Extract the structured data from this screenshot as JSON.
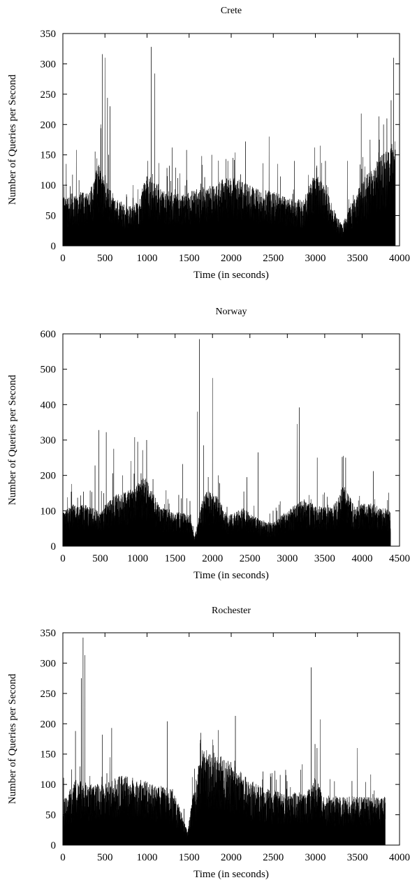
{
  "chart_data": [
    {
      "type": "bar",
      "title": "Crete",
      "xlabel": "Time (in seconds)",
      "ylabel": "Number of Queries per Second",
      "xlim": [
        0,
        4000
      ],
      "ylim": [
        0,
        350
      ],
      "xticks": [
        0,
        500,
        1000,
        1500,
        2000,
        2500,
        3000,
        3500,
        4000
      ],
      "yticks": [
        0,
        50,
        100,
        150,
        200,
        250,
        300,
        350
      ],
      "grid": false,
      "bar_color": "#000000",
      "duration": 3950,
      "baseline": [
        [
          0,
          55
        ],
        [
          150,
          62
        ],
        [
          300,
          60
        ],
        [
          430,
          95
        ],
        [
          520,
          75
        ],
        [
          600,
          58
        ],
        [
          700,
          48
        ],
        [
          800,
          45
        ],
        [
          900,
          50
        ],
        [
          980,
          80
        ],
        [
          1080,
          75
        ],
        [
          1200,
          62
        ],
        [
          1400,
          60
        ],
        [
          1600,
          65
        ],
        [
          1800,
          70
        ],
        [
          1950,
          80
        ],
        [
          2100,
          75
        ],
        [
          2300,
          65
        ],
        [
          2500,
          62
        ],
        [
          2700,
          55
        ],
        [
          2850,
          52
        ],
        [
          3000,
          85
        ],
        [
          3150,
          60
        ],
        [
          3250,
          35
        ],
        [
          3320,
          25
        ],
        [
          3450,
          55
        ],
        [
          3600,
          80
        ],
        [
          3750,
          100
        ],
        [
          3950,
          120
        ]
      ],
      "peaks": [
        [
          450,
          200
        ],
        [
          470,
          316
        ],
        [
          500,
          310
        ],
        [
          530,
          244
        ],
        [
          560,
          230
        ],
        [
          1050,
          328
        ],
        [
          1090,
          284
        ],
        [
          1010,
          140
        ],
        [
          40,
          135
        ],
        [
          160,
          158
        ],
        [
          1300,
          162
        ],
        [
          1470,
          158
        ],
        [
          1650,
          148
        ],
        [
          1960,
          140
        ],
        [
          2020,
          145
        ],
        [
          2170,
          172
        ],
        [
          2450,
          180
        ],
        [
          2550,
          135
        ],
        [
          2750,
          140
        ],
        [
          2990,
          162
        ],
        [
          3060,
          165
        ],
        [
          3120,
          140
        ],
        [
          3380,
          140
        ],
        [
          3545,
          218
        ],
        [
          3650,
          175
        ],
        [
          3760,
          175
        ],
        [
          3810,
          200
        ],
        [
          3850,
          210
        ],
        [
          3900,
          240
        ],
        [
          3930,
          310
        ]
      ]
    },
    {
      "type": "bar",
      "title": "Norway",
      "xlabel": "Time (in seconds)",
      "ylabel": "Number of Queries per Second",
      "xlim": [
        0,
        4500
      ],
      "ylim": [
        0,
        600
      ],
      "xticks": [
        0,
        500,
        1000,
        1500,
        2000,
        2500,
        3000,
        3500,
        4000,
        4500
      ],
      "yticks": [
        0,
        100,
        200,
        300,
        400,
        500,
        600
      ],
      "grid": false,
      "bar_color": "#000000",
      "duration": 4380,
      "baseline": [
        [
          0,
          65
        ],
        [
          150,
          85
        ],
        [
          300,
          80
        ],
        [
          500,
          70
        ],
        [
          700,
          100
        ],
        [
          900,
          110
        ],
        [
          1100,
          135
        ],
        [
          1300,
          75
        ],
        [
          1500,
          70
        ],
        [
          1700,
          60
        ],
        [
          1760,
          18
        ],
        [
          1820,
          60
        ],
        [
          1900,
          110
        ],
        [
          2050,
          100
        ],
        [
          2200,
          60
        ],
        [
          2400,
          75
        ],
        [
          2600,
          55
        ],
        [
          2800,
          45
        ],
        [
          3000,
          70
        ],
        [
          3200,
          90
        ],
        [
          3400,
          80
        ],
        [
          3600,
          75
        ],
        [
          3750,
          120
        ],
        [
          3900,
          80
        ],
        [
          4100,
          85
        ],
        [
          4380,
          70
        ]
      ],
      "peaks": [
        [
          430,
          228
        ],
        [
          480,
          328
        ],
        [
          580,
          322
        ],
        [
          680,
          275
        ],
        [
          800,
          200
        ],
        [
          960,
          308
        ],
        [
          1000,
          295
        ],
        [
          1120,
          300
        ],
        [
          1600,
          232
        ],
        [
          1800,
          380
        ],
        [
          1825,
          585
        ],
        [
          1880,
          285
        ],
        [
          2000,
          475
        ],
        [
          2460,
          195
        ],
        [
          2610,
          265
        ],
        [
          3130,
          345
        ],
        [
          3160,
          392
        ],
        [
          3400,
          250
        ],
        [
          3750,
          255
        ],
        [
          3780,
          250
        ],
        [
          4150,
          212
        ],
        [
          4340,
          130
        ]
      ]
    },
    {
      "type": "bar",
      "title": "Rochester",
      "xlabel": "Time (in seconds)",
      "ylabel": "Number of Queries per Second",
      "xlim": [
        0,
        4000
      ],
      "ylim": [
        0,
        350
      ],
      "xticks": [
        0,
        500,
        1000,
        1500,
        2000,
        2500,
        3000,
        3500,
        4000
      ],
      "yticks": [
        0,
        50,
        100,
        150,
        200,
        250,
        300,
        350
      ],
      "grid": false,
      "bar_color": "#000000",
      "duration": 3830,
      "baseline": [
        [
          0,
          50
        ],
        [
          150,
          75
        ],
        [
          300,
          70
        ],
        [
          500,
          70
        ],
        [
          700,
          80
        ],
        [
          900,
          75
        ],
        [
          1100,
          70
        ],
        [
          1300,
          65
        ],
        [
          1400,
          40
        ],
        [
          1480,
          15
        ],
        [
          1550,
          60
        ],
        [
          1650,
          110
        ],
        [
          1800,
          105
        ],
        [
          2000,
          95
        ],
        [
          2200,
          75
        ],
        [
          2400,
          65
        ],
        [
          2600,
          60
        ],
        [
          2800,
          60
        ],
        [
          2950,
          65
        ],
        [
          3000,
          80
        ],
        [
          3100,
          55
        ],
        [
          3300,
          55
        ],
        [
          3500,
          55
        ],
        [
          3830,
          55
        ]
      ],
      "peaks": [
        [
          220,
          275
        ],
        [
          240,
          342
        ],
        [
          260,
          313
        ],
        [
          150,
          188
        ],
        [
          470,
          182
        ],
        [
          580,
          193
        ],
        [
          1240,
          204
        ],
        [
          1640,
          185
        ],
        [
          2050,
          213
        ],
        [
          2950,
          293
        ],
        [
          3060,
          207
        ],
        [
          3500,
          160
        ],
        [
          3700,
          90
        ]
      ]
    }
  ]
}
